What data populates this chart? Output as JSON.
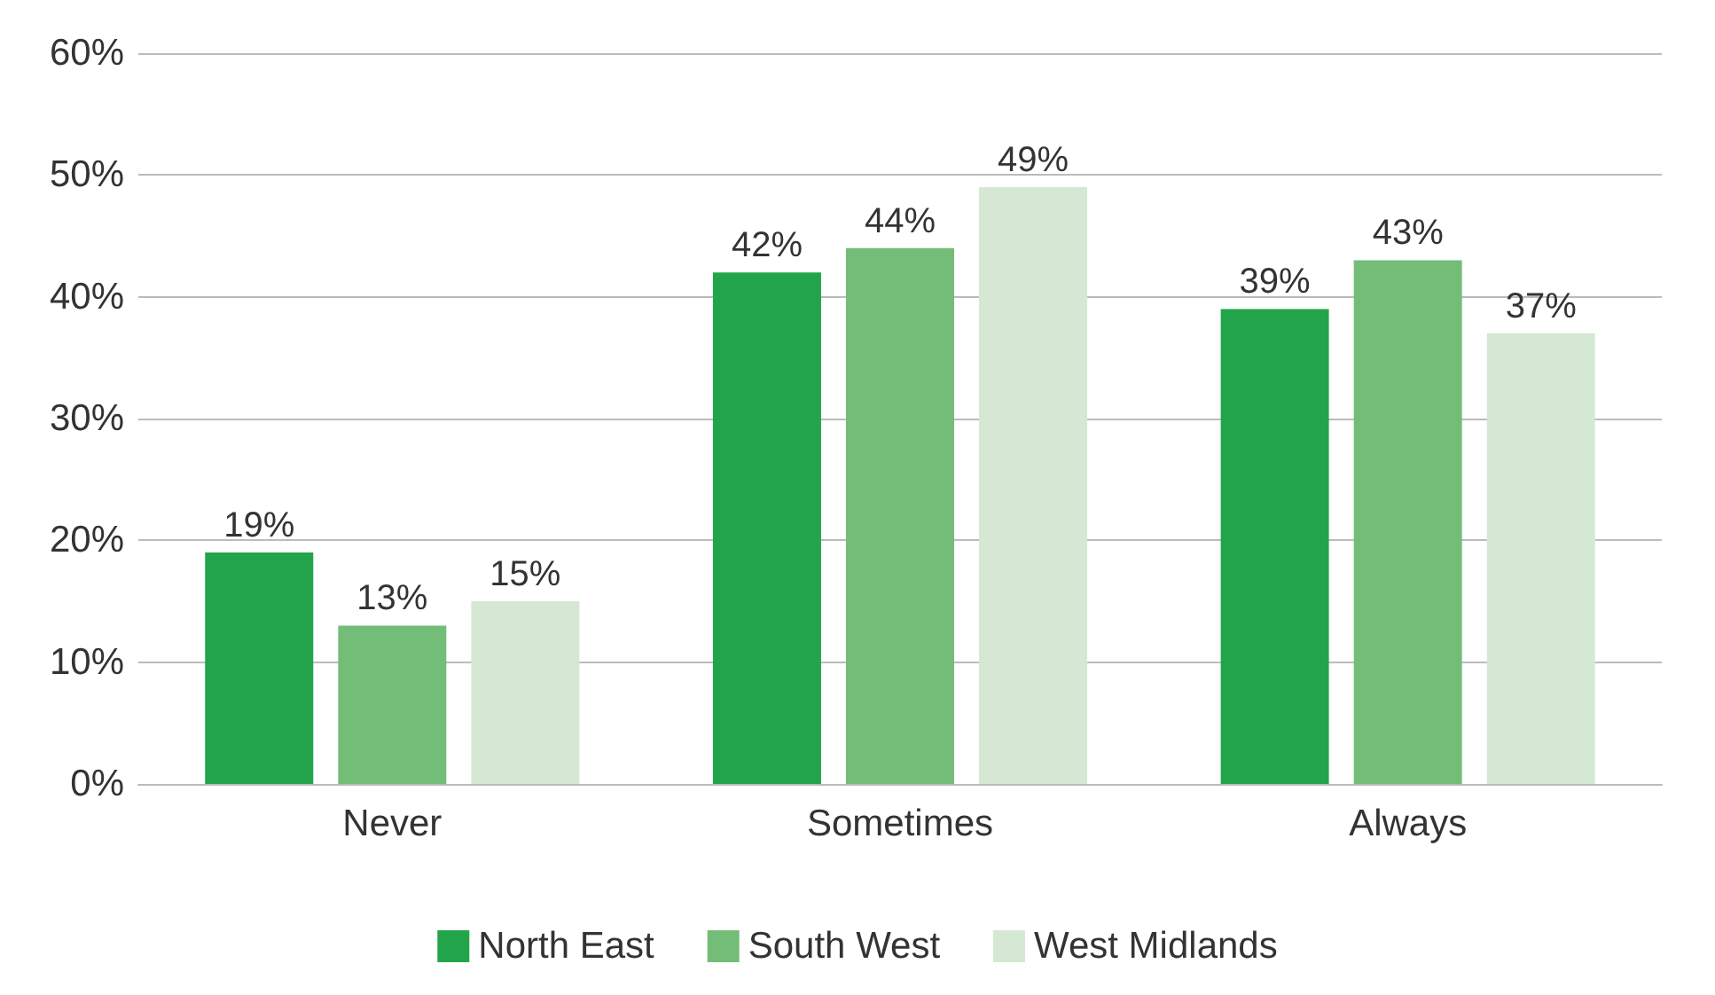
{
  "chart_data": {
    "type": "bar",
    "categories": [
      "Never",
      "Sometimes",
      "Always"
    ],
    "series": [
      {
        "name": "North East",
        "color": "#22a54a",
        "values": [
          19,
          42,
          39
        ],
        "value_labels": [
          "19%",
          "42%",
          "39%"
        ]
      },
      {
        "name": "South West",
        "color": "#74bd78",
        "values": [
          13,
          44,
          43
        ],
        "value_labels": [
          "13%",
          "44%",
          "43%"
        ]
      },
      {
        "name": "West Midlands",
        "color": "#d5e8d4",
        "values": [
          15,
          49,
          37
        ],
        "value_labels": [
          "15%",
          "49%",
          "37%"
        ]
      }
    ],
    "ylim": [
      0,
      60
    ],
    "yticks": [
      {
        "value": 0,
        "label": "0%"
      },
      {
        "value": 10,
        "label": "10%"
      },
      {
        "value": 20,
        "label": "20%"
      },
      {
        "value": 30,
        "label": "30%"
      },
      {
        "value": 40,
        "label": "40%"
      },
      {
        "value": 50,
        "label": "50%"
      },
      {
        "value": 60,
        "label": "60%"
      }
    ],
    "grid": "y",
    "legend": "bottom"
  }
}
